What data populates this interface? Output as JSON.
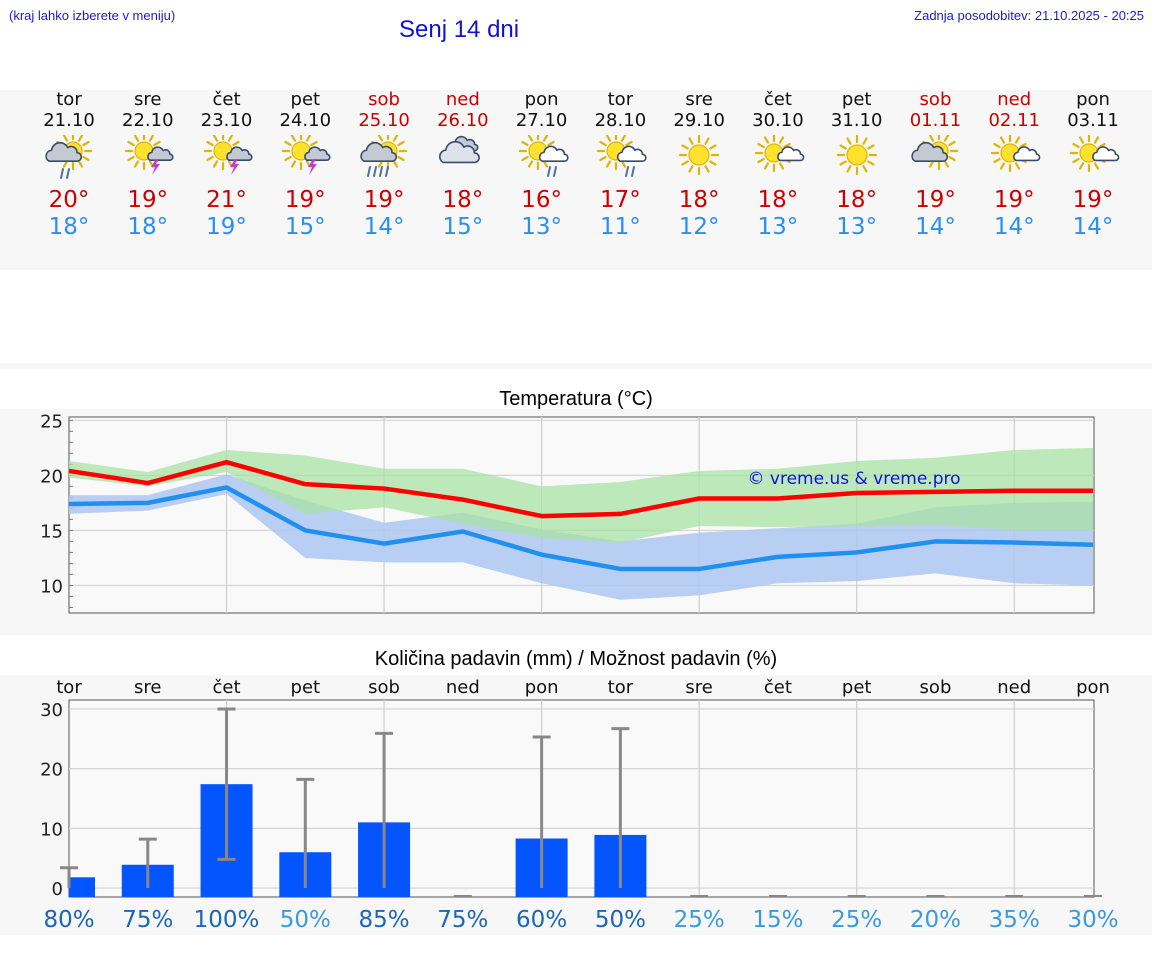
{
  "header": {
    "note_left": "(kraj lahko izberete v meniju)",
    "title": "Senj 14 dni",
    "updated": "Zadnja posodobitev: 21.10.2025 - 20:25"
  },
  "colors": {
    "max_temp": "#cc0000",
    "min_temp": "#2a8ff0",
    "weekend": "#cc0000",
    "max_band": "#a8e2a4",
    "min_band": "#aec7f2",
    "bar": "#0555ff",
    "whisker": "#888888",
    "pct_dark": "#1a66b8",
    "pct_light": "#3a9ae0"
  },
  "days": [
    {
      "name": "tor",
      "date": "21.10",
      "max": "20°",
      "min": "18°",
      "icon": "sun-cloud-rain",
      "weekend": false
    },
    {
      "name": "sre",
      "date": "22.10",
      "max": "19°",
      "min": "18°",
      "icon": "sun-thunder",
      "weekend": false
    },
    {
      "name": "čet",
      "date": "23.10",
      "max": "21°",
      "min": "19°",
      "icon": "sun-thunder",
      "weekend": false
    },
    {
      "name": "pet",
      "date": "24.10",
      "max": "19°",
      "min": "15°",
      "icon": "sun-thunder",
      "weekend": false
    },
    {
      "name": "sob",
      "date": "25.10",
      "max": "19°",
      "min": "14°",
      "icon": "sun-cloud-heavy-rain",
      "weekend": true
    },
    {
      "name": "ned",
      "date": "26.10",
      "max": "18°",
      "min": "15°",
      "icon": "cloudy",
      "weekend": true
    },
    {
      "name": "pon",
      "date": "27.10",
      "max": "16°",
      "min": "13°",
      "icon": "sun-cloud-showers",
      "weekend": false
    },
    {
      "name": "tor",
      "date": "28.10",
      "max": "17°",
      "min": "11°",
      "icon": "sun-cloud-showers",
      "weekend": false
    },
    {
      "name": "sre",
      "date": "29.10",
      "max": "18°",
      "min": "12°",
      "icon": "sun",
      "weekend": false
    },
    {
      "name": "čet",
      "date": "30.10",
      "max": "18°",
      "min": "13°",
      "icon": "sun-small-cloud",
      "weekend": false
    },
    {
      "name": "pet",
      "date": "31.10",
      "max": "18°",
      "min": "13°",
      "icon": "sun",
      "weekend": false
    },
    {
      "name": "sob",
      "date": "01.11",
      "max": "19°",
      "min": "14°",
      "icon": "sun-grey-cloud",
      "weekend": true
    },
    {
      "name": "ned",
      "date": "02.11",
      "max": "19°",
      "min": "14°",
      "icon": "sun-small-cloud",
      "weekend": true
    },
    {
      "name": "pon",
      "date": "03.11",
      "max": "19°",
      "min": "14°",
      "icon": "sun-small-cloud",
      "weekend": false
    }
  ],
  "chart_data": [
    {
      "type": "line",
      "title": "Temperatura (°C)",
      "watermark": "© vreme.us & vreme.pro",
      "ylim": [
        7.5,
        25.3
      ],
      "yticks": [
        10,
        15,
        20,
        25
      ],
      "grid": true,
      "x": [
        0,
        1,
        2,
        3,
        4,
        5,
        6,
        7,
        8,
        9,
        10,
        11,
        12,
        13
      ],
      "series": [
        {
          "role": "max",
          "color": "#ff0000",
          "values": [
            20.4,
            19.3,
            21.2,
            19.2,
            18.8,
            17.8,
            16.3,
            16.5,
            17.9,
            17.9,
            18.4,
            18.5,
            18.6,
            18.6
          ]
        },
        {
          "role": "min",
          "color": "#2090f0",
          "values": [
            17.4,
            17.5,
            18.9,
            15.0,
            13.8,
            14.9,
            12.8,
            11.5,
            11.5,
            12.6,
            13.0,
            14.0,
            13.9,
            13.7
          ]
        },
        {
          "role": "max_range",
          "color": "#a8e2a4",
          "upper": [
            21.3,
            20.3,
            22.3,
            21.8,
            20.6,
            20.6,
            19.0,
            19.4,
            20.4,
            20.6,
            21.3,
            21.6,
            22.3,
            22.5
          ],
          "lower": [
            19.8,
            19.0,
            20.3,
            16.5,
            17.1,
            15.6,
            14.3,
            13.9,
            15.4,
            15.3,
            15.4,
            15.5,
            15.0,
            15.0
          ]
        },
        {
          "role": "min_range",
          "color": "#aec7f2",
          "upper": [
            18.2,
            18.2,
            20.1,
            17.7,
            15.7,
            16.6,
            15.1,
            14.0,
            14.8,
            15.2,
            15.6,
            17.1,
            17.5,
            17.6
          ],
          "lower": [
            16.5,
            16.8,
            18.3,
            12.5,
            12.1,
            12.1,
            10.2,
            8.7,
            9.1,
            10.2,
            10.4,
            11.1,
            10.2,
            10.0
          ]
        }
      ]
    },
    {
      "type": "bar",
      "title": "Količina padavin (mm) / Možnost padavin (%)",
      "categories": [
        "tor",
        "sre",
        "čet",
        "pet",
        "sob",
        "ned",
        "pon",
        "tor",
        "sre",
        "čet",
        "pet",
        "sob",
        "ned",
        "pon"
      ],
      "values": [
        1.8,
        3.9,
        17.4,
        6.0,
        11.0,
        0,
        8.3,
        8.9,
        0,
        0,
        0,
        0,
        0,
        0
      ],
      "whisker_low": [
        0,
        0,
        4.8,
        0,
        0,
        0,
        0,
        0,
        0,
        0,
        0,
        0,
        0,
        0
      ],
      "whisker_high": [
        3.4,
        8.2,
        30.0,
        18.2,
        25.9,
        0,
        25.3,
        26.7,
        0,
        0,
        0,
        0,
        0,
        0
      ],
      "probability": [
        "80%",
        "75%",
        "100%",
        "50%",
        "85%",
        "75%",
        "60%",
        "50%",
        "25%",
        "15%",
        "25%",
        "20%",
        "35%",
        "30%"
      ],
      "prob_dark": [
        true,
        true,
        true,
        false,
        true,
        true,
        true,
        true,
        false,
        false,
        false,
        false,
        false,
        false
      ],
      "ylim": [
        -1.5,
        31.5
      ],
      "yticks": [
        0,
        10,
        20,
        30
      ],
      "grid": true
    }
  ]
}
